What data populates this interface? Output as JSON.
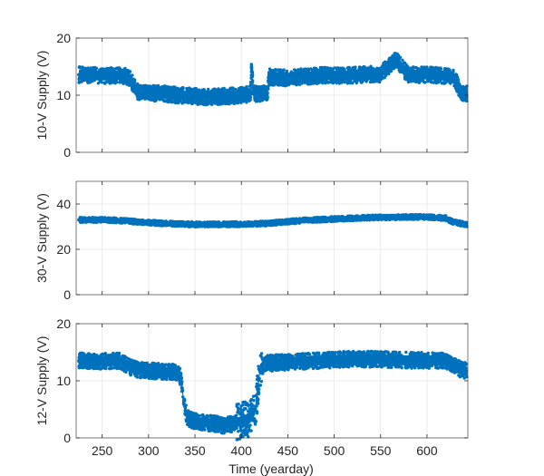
{
  "chart_data": [
    {
      "type": "scatter",
      "title": "",
      "xlabel": "",
      "ylabel": "10-V Supply (V)",
      "xlim": [
        222,
        644
      ],
      "ylim": [
        0,
        20
      ],
      "yticks": [
        0,
        10,
        20
      ],
      "grid": true,
      "series": [
        {
          "values": [
            [
              225,
              13.6
            ],
            [
              240,
              13.5
            ],
            [
              255,
              13.4
            ],
            [
              270,
              13.5
            ],
            [
              278,
              13.2
            ],
            [
              282,
              12.4
            ],
            [
              288,
              10.6
            ],
            [
              300,
              10.4
            ],
            [
              320,
              10.2
            ],
            [
              340,
              9.9
            ],
            [
              360,
              9.7
            ],
            [
              380,
              9.8
            ],
            [
              400,
              10.0
            ],
            [
              410,
              10.2
            ],
            [
              411,
              14.8
            ],
            [
              413,
              10.3
            ],
            [
              420,
              10.3
            ],
            [
              428,
              10.4
            ],
            [
              430,
              13.2
            ],
            [
              450,
              13.0
            ],
            [
              470,
              13.3
            ],
            [
              490,
              13.5
            ],
            [
              510,
              13.4
            ],
            [
              530,
              13.6
            ],
            [
              550,
              13.7
            ],
            [
              566,
              16.3
            ],
            [
              580,
              13.5
            ],
            [
              600,
              13.6
            ],
            [
              620,
              13.4
            ],
            [
              630,
              12.9
            ],
            [
              636,
              10.6
            ],
            [
              642,
              10.3
            ]
          ]
        }
      ]
    },
    {
      "type": "scatter",
      "title": "",
      "xlabel": "",
      "ylabel": "30-V Supply (V)",
      "xlim": [
        222,
        644
      ],
      "ylim": [
        0,
        50
      ],
      "yticks": [
        0,
        20,
        40
      ],
      "grid": true,
      "series": [
        {
          "values": [
            [
              225,
              33.0
            ],
            [
              250,
              33.0
            ],
            [
              275,
              32.6
            ],
            [
              290,
              32.0
            ],
            [
              320,
              31.4
            ],
            [
              350,
              31.0
            ],
            [
              380,
              31.0
            ],
            [
              410,
              31.2
            ],
            [
              430,
              31.5
            ],
            [
              450,
              32.2
            ],
            [
              470,
              32.8
            ],
            [
              490,
              33.2
            ],
            [
              510,
              33.6
            ],
            [
              540,
              34.0
            ],
            [
              570,
              34.2
            ],
            [
              600,
              34.3
            ],
            [
              620,
              33.8
            ],
            [
              628,
              32.0
            ],
            [
              642,
              31.0
            ]
          ]
        }
      ]
    },
    {
      "type": "scatter",
      "title": "",
      "xlabel": "Time (yearday)",
      "ylabel": "12-V Supply (V)",
      "xlim": [
        222,
        644
      ],
      "ylim": [
        0,
        20
      ],
      "yticks": [
        0,
        10,
        20
      ],
      "xticks": [
        250,
        300,
        350,
        400,
        450,
        500,
        550,
        600
      ],
      "grid": true,
      "series": [
        {
          "values": [
            [
              225,
              13.5
            ],
            [
              250,
              13.4
            ],
            [
              270,
              13.5
            ],
            [
              280,
              12.4
            ],
            [
              290,
              11.9
            ],
            [
              310,
              11.7
            ],
            [
              330,
              11.5
            ],
            [
              335,
              10.5
            ],
            [
              338,
              6.0
            ],
            [
              342,
              3.5
            ],
            [
              350,
              2.9
            ],
            [
              370,
              2.5
            ],
            [
              380,
              2.2
            ],
            [
              390,
              2.4
            ],
            [
              400,
              3.0
            ],
            [
              410,
              3.5
            ],
            [
              415,
              5.0
            ],
            [
              418,
              9.0
            ],
            [
              420,
              12.0
            ],
            [
              425,
              13.0
            ],
            [
              440,
              13.2
            ],
            [
              460,
              13.4
            ],
            [
              480,
              13.5
            ],
            [
              500,
              13.7
            ],
            [
              520,
              13.8
            ],
            [
              540,
              13.8
            ],
            [
              560,
              13.7
            ],
            [
              580,
              13.6
            ],
            [
              600,
              13.6
            ],
            [
              620,
              13.5
            ],
            [
              630,
              12.8
            ],
            [
              636,
              12.0
            ],
            [
              642,
              11.8
            ]
          ]
        }
      ]
    }
  ]
}
